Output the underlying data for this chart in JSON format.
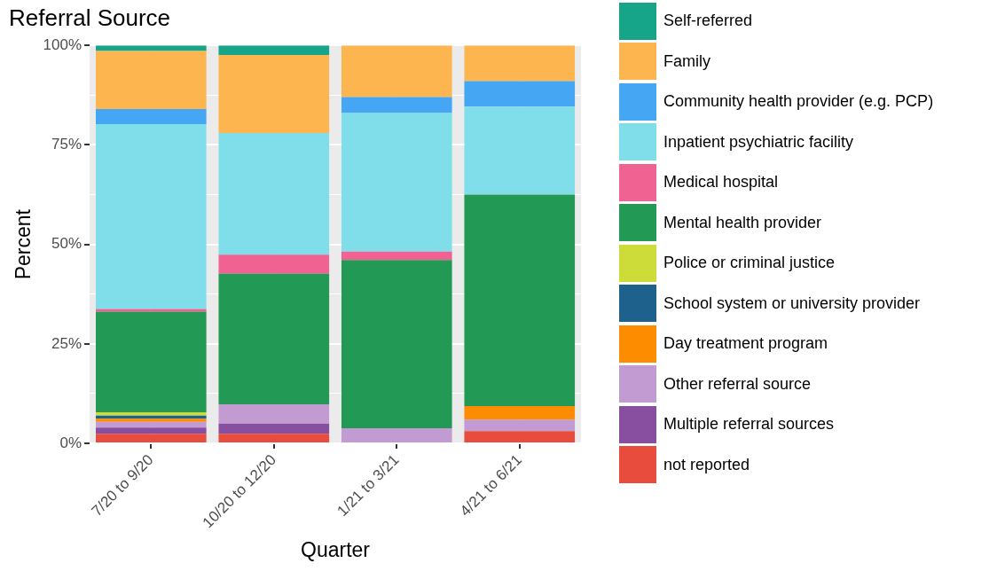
{
  "chart_data": {
    "type": "bar",
    "title": "Referral Source",
    "xlabel": "Quarter",
    "ylabel": "Percent",
    "categories": [
      "7/20 to 9/20",
      "10/20 to 12/20",
      "1/21 to 3/21",
      "4/21 to 6/21"
    ],
    "stacked": true,
    "legend": "right",
    "grid": true,
    "ylim": [
      0,
      100
    ],
    "yticks": [
      {
        "value": 0,
        "label": "0%"
      },
      {
        "value": 12.5,
        "label": null
      },
      {
        "value": 25,
        "label": "25%"
      },
      {
        "value": 37.5,
        "label": null
      },
      {
        "value": 50,
        "label": "50%"
      },
      {
        "value": 62.5,
        "label": null
      },
      {
        "value": 75,
        "label": "75%"
      },
      {
        "value": 87.5,
        "label": null
      },
      {
        "value": 100,
        "label": "100%"
      }
    ],
    "series": [
      {
        "name": "not reported",
        "color": "#e74c3c",
        "values": [
          2.4,
          2.4,
          0,
          3.1
        ]
      },
      {
        "name": "Multiple referral sources",
        "color": "#884ea0",
        "values": [
          1.6,
          2.6,
          0,
          0
        ]
      },
      {
        "name": "Other referral source",
        "color": "#c39bd3",
        "values": [
          1.4,
          4.8,
          3.8,
          2.9
        ]
      },
      {
        "name": "Day treatment program",
        "color": "#fe8c00",
        "values": [
          0.8,
          0,
          0,
          3.4
        ]
      },
      {
        "name": "School system or university provider",
        "color": "#1f618d",
        "values": [
          0.8,
          0,
          0,
          0
        ]
      },
      {
        "name": "Police or criminal justice",
        "color": "#cddc39",
        "values": [
          0.8,
          0,
          0,
          0
        ]
      },
      {
        "name": "Mental health provider",
        "color": "#229954",
        "values": [
          25.3,
          32.8,
          42.3,
          53.1
        ]
      },
      {
        "name": "Medical hospital",
        "color": "#f06292",
        "values": [
          0.7,
          4.8,
          2.1,
          0
        ]
      },
      {
        "name": "Inpatient psychiatric facility",
        "color": "#80deea",
        "values": [
          46.4,
          30.6,
          34.8,
          22.1
        ]
      },
      {
        "name": "Community health provider (e.g. PCP)",
        "color": "#45a6f4",
        "values": [
          3.8,
          0,
          4.0,
          6.4
        ]
      },
      {
        "name": "Family",
        "color": "#fdb54f",
        "values": [
          14.6,
          19.6,
          13.0,
          9.0
        ]
      },
      {
        "name": "Self-referred",
        "color": "#17a589",
        "values": [
          1.4,
          2.4,
          0,
          0
        ]
      }
    ]
  }
}
